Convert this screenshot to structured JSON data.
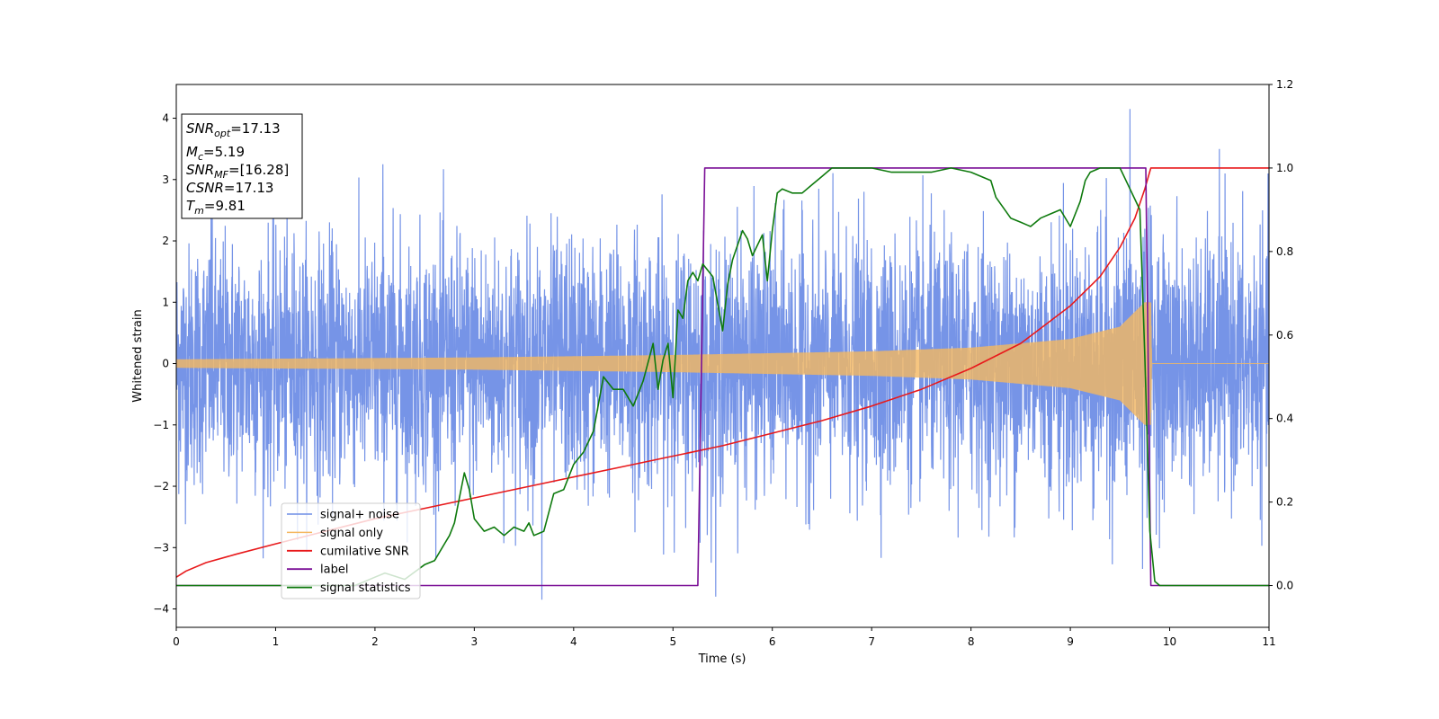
{
  "chart_data": {
    "type": "line",
    "xlabel": "Time (s)",
    "ylabel": "Whitened strain",
    "xlim": [
      0,
      11
    ],
    "ylim_left": [
      -4.3,
      4.55
    ],
    "ylim_right": [
      -0.1,
      1.2
    ],
    "xticks": [
      "0",
      "1",
      "2",
      "3",
      "4",
      "5",
      "6",
      "7",
      "8",
      "9",
      "10",
      "11"
    ],
    "yticks_left": [
      "−4",
      "−3",
      "−2",
      "−1",
      "0",
      "1",
      "2",
      "3",
      "4"
    ],
    "yticks_right": [
      "0.0",
      "0.2",
      "0.4",
      "0.6",
      "0.8",
      "1.0",
      "1.2"
    ],
    "legend_position": "lower-left",
    "series": [
      {
        "name": "signal+ noise",
        "axis": "left",
        "color": "#6f8ee6",
        "description_kind": "noise",
        "amplitude_std": 1.0,
        "spikes": [
          [
            0.35,
            2.7
          ],
          [
            2.08,
            3.25
          ],
          [
            3.68,
            -3.85
          ],
          [
            5.43,
            -3.8
          ],
          [
            9.6,
            4.15
          ],
          [
            10.5,
            3.5
          ]
        ]
      },
      {
        "name": "signal only",
        "axis": "left",
        "color": "#f5b860",
        "description_kind": "chirp",
        "t_merge": 9.81,
        "envelope": [
          [
            0,
            0.07
          ],
          [
            3,
            0.1
          ],
          [
            5,
            0.14
          ],
          [
            7,
            0.2
          ],
          [
            8,
            0.26
          ],
          [
            9,
            0.4
          ],
          [
            9.5,
            0.6
          ],
          [
            9.75,
            1.0
          ],
          [
            9.81,
            1.0
          ],
          [
            9.82,
            0
          ],
          [
            11,
            0
          ]
        ]
      },
      {
        "name": "cumilative SNR",
        "axis": "right",
        "color": "#e8191b",
        "x": [
          0,
          0.1,
          0.3,
          0.6,
          1,
          1.5,
          2,
          2.5,
          3,
          3.5,
          4,
          4.5,
          5,
          5.5,
          6,
          6.5,
          7,
          7.5,
          8,
          8.5,
          9,
          9.3,
          9.5,
          9.65,
          9.75,
          9.81,
          11
        ],
        "y": [
          0.02,
          0.035,
          0.055,
          0.075,
          0.1,
          0.13,
          0.16,
          0.185,
          0.21,
          0.235,
          0.26,
          0.285,
          0.31,
          0.335,
          0.365,
          0.395,
          0.43,
          0.47,
          0.52,
          0.58,
          0.67,
          0.74,
          0.81,
          0.88,
          0.95,
          1.0,
          1.0
        ]
      },
      {
        "name": "label",
        "axis": "right",
        "color": "#7a0f96",
        "x": [
          0,
          5.25,
          5.32,
          9.76,
          9.81,
          11
        ],
        "y": [
          0,
          0,
          1,
          1,
          0,
          0
        ]
      },
      {
        "name": "signal statistics",
        "axis": "right",
        "color": "#0e7a0d",
        "x": [
          0,
          1.8,
          2.0,
          2.1,
          2.3,
          2.5,
          2.6,
          2.7,
          2.75,
          2.8,
          2.9,
          2.95,
          3.0,
          3.1,
          3.2,
          3.3,
          3.4,
          3.5,
          3.55,
          3.6,
          3.7,
          3.8,
          3.9,
          4.0,
          4.1,
          4.2,
          4.3,
          4.4,
          4.5,
          4.6,
          4.7,
          4.8,
          4.85,
          4.9,
          4.95,
          5.0,
          5.05,
          5.1,
          5.15,
          5.2,
          5.25,
          5.3,
          5.4,
          5.5,
          5.55,
          5.6,
          5.7,
          5.75,
          5.8,
          5.9,
          5.95,
          6.0,
          6.05,
          6.1,
          6.2,
          6.3,
          6.4,
          6.5,
          6.6,
          6.8,
          7.0,
          7.2,
          7.4,
          7.6,
          7.8,
          8.0,
          8.2,
          8.25,
          8.4,
          8.5,
          8.6,
          8.7,
          8.8,
          8.9,
          9.0,
          9.1,
          9.15,
          9.2,
          9.3,
          9.4,
          9.5,
          9.6,
          9.7,
          9.75,
          9.8,
          9.85,
          9.9,
          10.0,
          11
        ],
        "y": [
          0,
          0,
          0.02,
          0.03,
          0.015,
          0.05,
          0.06,
          0.1,
          0.12,
          0.15,
          0.27,
          0.23,
          0.16,
          0.13,
          0.14,
          0.12,
          0.14,
          0.13,
          0.15,
          0.12,
          0.13,
          0.22,
          0.23,
          0.29,
          0.32,
          0.37,
          0.5,
          0.47,
          0.47,
          0.43,
          0.49,
          0.58,
          0.47,
          0.54,
          0.58,
          0.45,
          0.66,
          0.64,
          0.73,
          0.75,
          0.73,
          0.77,
          0.74,
          0.61,
          0.72,
          0.78,
          0.85,
          0.83,
          0.79,
          0.84,
          0.73,
          0.85,
          0.94,
          0.95,
          0.94,
          0.94,
          0.96,
          0.98,
          1.0,
          1.0,
          1.0,
          0.99,
          0.99,
          0.99,
          1.0,
          0.99,
          0.97,
          0.93,
          0.88,
          0.87,
          0.86,
          0.88,
          0.89,
          0.9,
          0.86,
          0.92,
          0.97,
          0.99,
          1.0,
          1.0,
          1.0,
          0.95,
          0.9,
          0.55,
          0.13,
          0.01,
          0.0,
          0.0,
          0.0
        ]
      }
    ]
  },
  "info_box": {
    "lines": [
      {
        "sym": "SNR",
        "sub": "opt",
        "val": "=17.13"
      },
      {
        "sym": "M",
        "sub": "c",
        "val": "=5.19"
      },
      {
        "sym": "SNR",
        "sub": "MF",
        "val": "=[16.28]"
      },
      {
        "sym": "CSNR",
        "sub": "",
        "val": "=17.13"
      },
      {
        "sym": "T",
        "sub": "m",
        "val": "=9.81"
      }
    ]
  }
}
